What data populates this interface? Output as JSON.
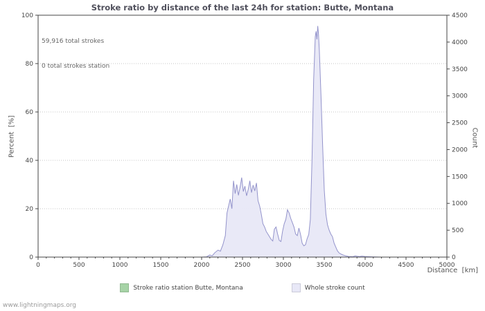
{
  "title": "Stroke ratio by distance of the last 24h for station: Butte, Montana",
  "annotations": {
    "line1": "59,916 total strokes",
    "line2": "0 total strokes station"
  },
  "watermark": "www.lightningmaps.org",
  "legend": {
    "items": [
      {
        "label": "Stroke ratio station Butte, Montana",
        "color": "#a6d3a6"
      },
      {
        "label": "Whole stroke count",
        "color": "#e8e8f7"
      }
    ]
  },
  "chart_data": {
    "type": "area",
    "title": "Stroke ratio by distance of the last 24h for station: Butte, Montana",
    "xlabel": "Distance  [km]",
    "ylabel_left": "Percent  [%]",
    "ylabel_right": "Count",
    "x_range": [
      0,
      5000
    ],
    "x_tick_step": 500,
    "x_minor_step": 100,
    "y_left_range": [
      0,
      100
    ],
    "y_left_tick_step": 20,
    "y_right_range": [
      0,
      4500
    ],
    "y_right_tick_step": 500,
    "grid": "horizontal-dotted",
    "legend_position": "bottom",
    "series": [
      {
        "name": "Stroke ratio station Butte, Montana",
        "axis": "left",
        "line_color": "#a6d3a6",
        "fill_color": "#a6d3a6",
        "points": [
          [
            0,
            0
          ],
          [
            5000,
            0
          ]
        ]
      },
      {
        "name": "Whole stroke count",
        "axis": "right",
        "line_color": "#9393cb",
        "fill_color": "#e8e8f7",
        "points": [
          [
            0,
            0
          ],
          [
            1000,
            0
          ],
          [
            1900,
            0
          ],
          [
            2000,
            0
          ],
          [
            2060,
            5
          ],
          [
            2100,
            40
          ],
          [
            2130,
            25
          ],
          [
            2160,
            80
          ],
          [
            2200,
            130
          ],
          [
            2230,
            110
          ],
          [
            2260,
            230
          ],
          [
            2290,
            400
          ],
          [
            2310,
            820
          ],
          [
            2330,
            950
          ],
          [
            2350,
            1080
          ],
          [
            2370,
            900
          ],
          [
            2390,
            1420
          ],
          [
            2410,
            1180
          ],
          [
            2430,
            1350
          ],
          [
            2450,
            1150
          ],
          [
            2470,
            1300
          ],
          [
            2490,
            1480
          ],
          [
            2510,
            1220
          ],
          [
            2530,
            1320
          ],
          [
            2550,
            1140
          ],
          [
            2570,
            1260
          ],
          [
            2590,
            1420
          ],
          [
            2610,
            1200
          ],
          [
            2630,
            1340
          ],
          [
            2650,
            1230
          ],
          [
            2670,
            1380
          ],
          [
            2690,
            1050
          ],
          [
            2710,
            950
          ],
          [
            2730,
            800
          ],
          [
            2750,
            620
          ],
          [
            2770,
            560
          ],
          [
            2790,
            480
          ],
          [
            2810,
            430
          ],
          [
            2830,
            380
          ],
          [
            2850,
            330
          ],
          [
            2870,
            300
          ],
          [
            2890,
            520
          ],
          [
            2910,
            560
          ],
          [
            2930,
            430
          ],
          [
            2950,
            310
          ],
          [
            2970,
            290
          ],
          [
            2990,
            480
          ],
          [
            3010,
            620
          ],
          [
            3030,
            700
          ],
          [
            3050,
            880
          ],
          [
            3070,
            820
          ],
          [
            3090,
            720
          ],
          [
            3110,
            640
          ],
          [
            3130,
            560
          ],
          [
            3150,
            430
          ],
          [
            3170,
            400
          ],
          [
            3190,
            540
          ],
          [
            3210,
            420
          ],
          [
            3230,
            260
          ],
          [
            3250,
            210
          ],
          [
            3270,
            230
          ],
          [
            3290,
            340
          ],
          [
            3310,
            420
          ],
          [
            3330,
            700
          ],
          [
            3350,
            1800
          ],
          [
            3370,
            3300
          ],
          [
            3390,
            4100
          ],
          [
            3400,
            4200
          ],
          [
            3410,
            4050
          ],
          [
            3420,
            4300
          ],
          [
            3430,
            4150
          ],
          [
            3440,
            3850
          ],
          [
            3460,
            3000
          ],
          [
            3480,
            2100
          ],
          [
            3500,
            1250
          ],
          [
            3520,
            800
          ],
          [
            3540,
            600
          ],
          [
            3560,
            500
          ],
          [
            3580,
            430
          ],
          [
            3600,
            380
          ],
          [
            3620,
            260
          ],
          [
            3640,
            190
          ],
          [
            3660,
            120
          ],
          [
            3680,
            80
          ],
          [
            3700,
            60
          ],
          [
            3720,
            45
          ],
          [
            3740,
            35
          ],
          [
            3760,
            25
          ],
          [
            3780,
            18
          ],
          [
            3800,
            12
          ],
          [
            3850,
            8
          ],
          [
            3880,
            22
          ],
          [
            3900,
            15
          ],
          [
            3930,
            10
          ],
          [
            3960,
            18
          ],
          [
            4000,
            12
          ],
          [
            4040,
            8
          ],
          [
            4080,
            5
          ],
          [
            4120,
            2
          ],
          [
            4200,
            0
          ],
          [
            5000,
            0
          ]
        ]
      }
    ]
  }
}
